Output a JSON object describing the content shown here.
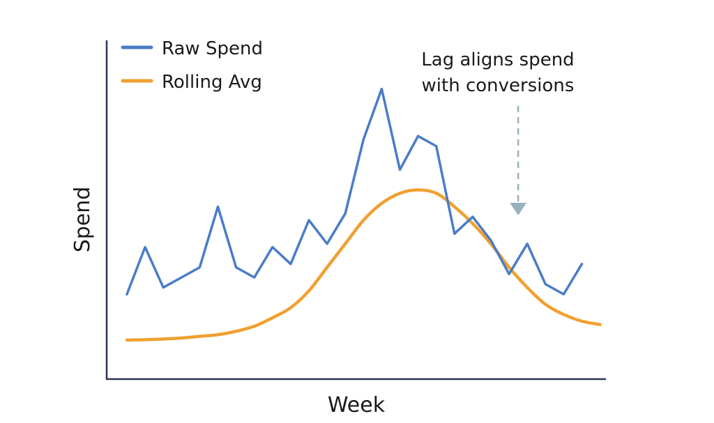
{
  "chart_data": {
    "type": "line",
    "title": "",
    "xlabel": "Week",
    "ylabel": "Spend",
    "xlim": [
      1,
      27
    ],
    "ylim": [
      0,
      100
    ],
    "grid": false,
    "legend_position": "top-left",
    "series": [
      {
        "name": "Raw Spend",
        "color": "#4a7cc7",
        "x": [
          1,
          2,
          3,
          4,
          5,
          6,
          7,
          8,
          9,
          10,
          11,
          12,
          13,
          14,
          15,
          16,
          17,
          18,
          19,
          20,
          21,
          22,
          23,
          24,
          25,
          26
        ],
        "values": [
          25,
          39,
          27,
          30,
          33,
          51,
          33,
          30,
          39,
          34,
          47,
          40,
          49,
          71,
          86,
          62,
          72,
          69,
          43,
          48,
          41,
          31,
          40,
          28,
          25,
          34
        ]
      },
      {
        "name": "Rolling Avg",
        "color": "#f0a030",
        "x": [
          1,
          2,
          3,
          4,
          5,
          6,
          7,
          8,
          9,
          10,
          11,
          12,
          13,
          14,
          15,
          16,
          17,
          18,
          19,
          20,
          21,
          22,
          23,
          24,
          25,
          26,
          27
        ],
        "values": [
          11.4,
          11.5,
          11.7,
          12,
          12.5,
          13,
          14,
          15.5,
          18,
          21,
          26,
          33,
          40,
          47,
          52,
          55,
          56,
          55,
          51,
          46,
          40,
          33,
          27,
          22,
          19,
          17,
          16
        ]
      }
    ],
    "annotations": [
      {
        "lines": [
          "Lag aligns spend",
          "with conversions"
        ],
        "arrow_week": 22.5,
        "arrow_color": "#9ab0bd"
      }
    ]
  }
}
